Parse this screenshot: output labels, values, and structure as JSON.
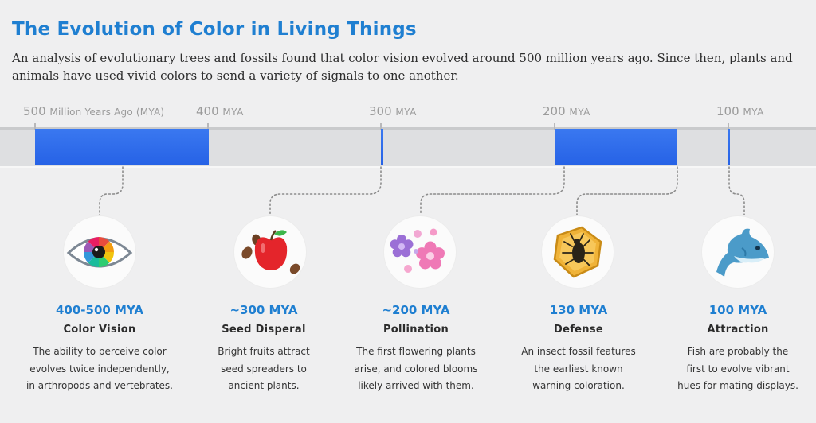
{
  "title": "The Evolution of Color in Living Things",
  "subtitle": "An analysis of evolutionary trees and fossils found that color vision evolved around 500 million years ago. Since then, plants and animals have used vivid colors to send a variety of signals to one another.",
  "timeline": {
    "ticks": [
      {
        "num": "500",
        "unit": "Million Years Ago (MYA)"
      },
      {
        "num": "400",
        "unit": "MYA"
      },
      {
        "num": "300",
        "unit": "MYA"
      },
      {
        "num": "200",
        "unit": "MYA"
      },
      {
        "num": "100",
        "unit": "MYA"
      }
    ],
    "periods": [
      {
        "start": 500,
        "end": 400
      },
      {
        "start": 300,
        "end": 300
      },
      {
        "start": 200,
        "end": 130
      },
      {
        "start": 130,
        "end": 130
      },
      {
        "start": 100,
        "end": 100
      }
    ],
    "bar_color": "#2f6ef0"
  },
  "events": [
    {
      "icon": "eye-icon",
      "title": "400-500 MYA",
      "name": "Color Vision",
      "desc": [
        "The ability to perceive color",
        "evolves twice independently,",
        "in arthropods and vertebrates."
      ]
    },
    {
      "icon": "apple-seeds-icon",
      "title": "~300 MYA",
      "name": "Seed Disperal",
      "desc": [
        "Bright fruits attract",
        "seed spreaders to",
        "ancient plants."
      ]
    },
    {
      "icon": "flowers-icon",
      "title": "~200 MYA",
      "name": "Pollination",
      "desc": [
        "The first flowering plants",
        "arise, and colored blooms",
        "likely arrived with them."
      ]
    },
    {
      "icon": "insect-fossil-icon",
      "title": "130 MYA",
      "name": "Defense",
      "desc": [
        "An insect fossil features",
        "the earliest known",
        "warning coloration."
      ]
    },
    {
      "icon": "fish-icon",
      "title": "100 MYA",
      "name": "Attraction",
      "desc": [
        "Fish are probably the",
        "first to evolve vibrant",
        "hues for mating displays."
      ]
    }
  ],
  "colors": {
    "accent": "#1f7fd1",
    "bar": "#2f6ef0"
  }
}
